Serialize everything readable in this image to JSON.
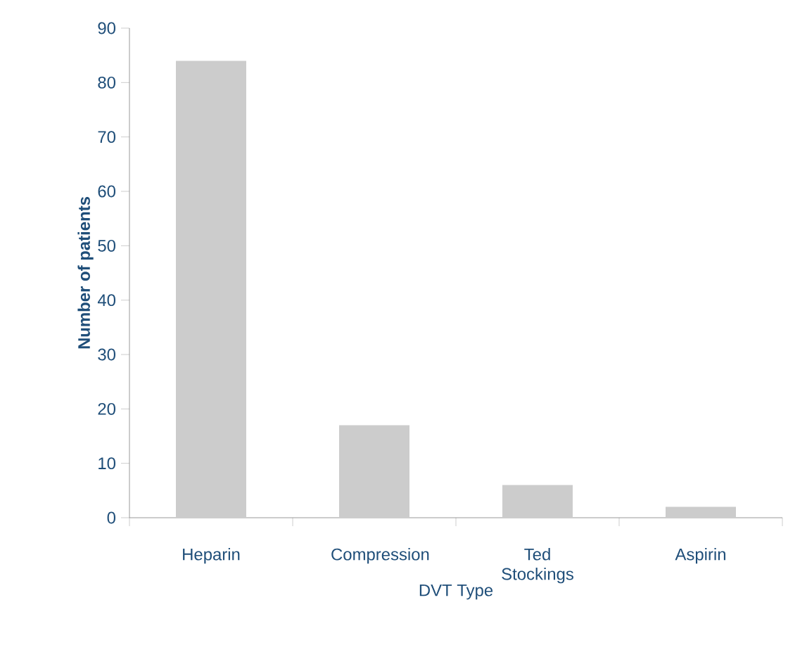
{
  "chart_data": {
    "type": "bar",
    "xlabel": "DVT Type",
    "ylabel": "Number of patients",
    "categories": [
      "Heparin",
      "Compression",
      "Ted Stockings",
      "Aspirin"
    ],
    "values": [
      84,
      17,
      6,
      2
    ],
    "color": "#cccccc",
    "ylim": [
      0,
      90
    ],
    "yticks": [
      0,
      10,
      20,
      30,
      40,
      50,
      60,
      70,
      80,
      90
    ],
    "grid": false
  }
}
